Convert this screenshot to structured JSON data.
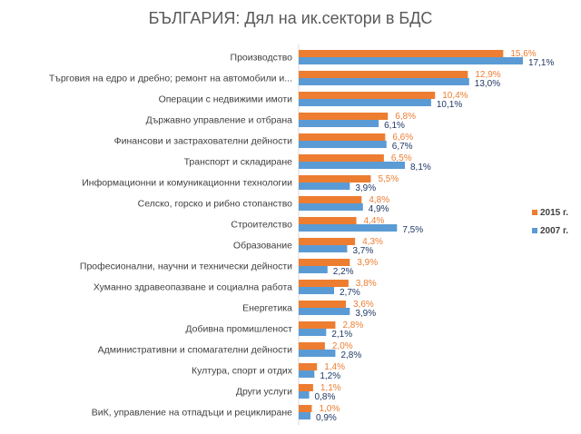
{
  "chart_data": {
    "type": "bar",
    "orientation": "horizontal",
    "title": "БЪЛГАРИЯ: Дял на ик.сектори в БДС",
    "categories": [
      "Производство",
      "Търговия на едро и дребно; ремонт на автомобили и...",
      "Операции с недвижими имоти",
      "Държавно управление и отбрана",
      "Финансови и застрахователни дейности",
      "Транспорт и складиране",
      "Информационни и комуникационни технологии",
      "Селско, горско и рибно стопанство",
      "Строителство",
      "Образование",
      "Професионални, научни и технически дейности",
      "Хуманно здравеопазване и социална работа",
      "Енергетика",
      "Добивна промишленост",
      "Административни и спомагателни дейности",
      "Култура, спорт и отдих",
      "Други услуги",
      "ВиК, управление на отпадъци и рециклиране"
    ],
    "series": [
      {
        "name": "2015 г.",
        "color": "#ED7D31",
        "values": [
          15.6,
          12.9,
          10.4,
          6.8,
          6.6,
          6.5,
          5.5,
          4.8,
          4.4,
          4.3,
          3.9,
          3.8,
          3.6,
          2.8,
          2.0,
          1.4,
          1.1,
          1.0
        ],
        "labels": [
          "15,6%",
          "12,9%",
          "10,4%",
          "6,8%",
          "6,6%",
          "6,5%",
          "5,5%",
          "4,8%",
          "4,4%",
          "4,3%",
          "3,9%",
          "3,8%",
          "3,6%",
          "2,8%",
          "2,0%",
          "1,4%",
          "1,1%",
          "1,0%"
        ]
      },
      {
        "name": "2007 г.",
        "color": "#5B9BD5",
        "values": [
          17.1,
          13.0,
          10.1,
          6.1,
          6.7,
          8.1,
          3.9,
          4.9,
          7.5,
          3.7,
          2.2,
          2.7,
          3.9,
          2.1,
          2.8,
          1.2,
          0.8,
          0.9
        ],
        "labels": [
          "17,1%",
          "13,0%",
          "10,1%",
          "6,1%",
          "6,7%",
          "8,1%",
          "3,9%",
          "4,9%",
          "7,5%",
          "3,7%",
          "2,2%",
          "2,7%",
          "3,9%",
          "2,1%",
          "2,8%",
          "1,2%",
          "0,8%",
          "0,9%"
        ]
      }
    ],
    "xlim": [
      0,
      17.1
    ],
    "grid": false,
    "legend_position": "right"
  }
}
